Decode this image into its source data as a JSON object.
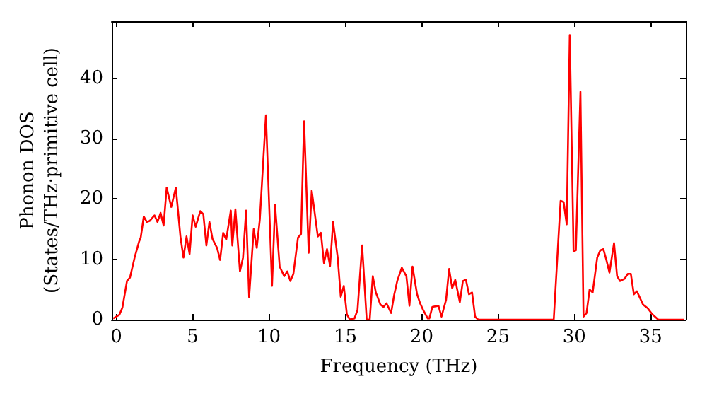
{
  "chart_data": {
    "type": "line",
    "xlabel": "Frequency (THz)",
    "ylabel": "Phonon DOS\n(States/THz·primitive cell)",
    "xlim": [
      -0.3,
      37.3
    ],
    "ylim": [
      0,
      49.5
    ],
    "xticks": [
      0,
      5,
      10,
      15,
      20,
      25,
      30,
      35
    ],
    "yticks": [
      0,
      10,
      20,
      30,
      40
    ],
    "marker": "none",
    "line_style": "solid",
    "series": [
      {
        "color": "#ff0000",
        "x": [
          -0.2,
          0.2,
          0.4,
          0.7,
          0.9,
          1.2,
          1.5,
          1.6,
          1.8,
          2.0,
          2.2,
          2.5,
          2.7,
          2.9,
          3.1,
          3.3,
          3.6,
          3.9,
          4.2,
          4.4,
          4.6,
          4.8,
          5.0,
          5.2,
          5.5,
          5.7,
          5.9,
          6.1,
          6.3,
          6.6,
          6.8,
          7.0,
          7.2,
          7.5,
          7.6,
          7.8,
          8.1,
          8.3,
          8.5,
          8.7,
          9.0,
          9.2,
          9.4,
          9.8,
          10.2,
          10.4,
          10.7,
          11.0,
          11.2,
          11.4,
          11.6,
          11.9,
          12.1,
          12.3,
          12.6,
          12.8,
          13.2,
          13.4,
          13.6,
          13.8,
          14.0,
          14.2,
          14.5,
          14.7,
          14.9,
          15.1,
          15.3,
          15.6,
          15.8,
          16.1,
          16.4,
          16.6,
          16.8,
          17.0,
          17.3,
          17.5,
          17.7,
          18.0,
          18.2,
          18.4,
          18.7,
          19.0,
          19.2,
          19.4,
          19.7,
          19.9,
          20.1,
          20.4,
          20.5,
          20.7,
          21.1,
          21.3,
          21.6,
          21.8,
          22.0,
          22.2,
          22.5,
          22.7,
          22.9,
          23.1,
          23.3,
          23.5,
          23.7,
          28.65,
          29.1,
          29.3,
          29.5,
          29.7,
          29.95,
          30.1,
          30.4,
          30.6,
          30.8,
          31.0,
          31.2,
          31.5,
          31.7,
          31.9,
          32.1,
          32.3,
          32.6,
          32.8,
          33.0,
          33.3,
          33.5,
          33.7,
          33.9,
          34.1,
          34.5,
          34.8,
          35.1,
          35.5,
          37.2
        ],
        "values": [
          0.2,
          0.8,
          2,
          6.4,
          7,
          10.3,
          13,
          13.6,
          17.1,
          16.2,
          16.4,
          17.3,
          16.2,
          17.7,
          15.6,
          21.9,
          18.7,
          21.9,
          13.8,
          10.3,
          13.8,
          10.9,
          17.3,
          15.4,
          18,
          17.5,
          12.3,
          16.2,
          13.4,
          11.9,
          9.9,
          14.4,
          13.3,
          18.1,
          12.3,
          18.3,
          8,
          10.3,
          18.1,
          3.7,
          15,
          11.9,
          16.6,
          33.9,
          5.6,
          19,
          8.8,
          7.2,
          8,
          6.4,
          7.6,
          13.6,
          14.2,
          32.9,
          11.1,
          21.4,
          13.8,
          14.4,
          9.4,
          11.7,
          8.9,
          16.2,
          10.3,
          3.8,
          5.6,
          0.9,
          0,
          0.2,
          1.6,
          12.3,
          0,
          0,
          7.2,
          4.5,
          2.5,
          2.1,
          2.7,
          1.1,
          4.1,
          6.4,
          8.6,
          7.2,
          2.3,
          8.8,
          4.2,
          2.7,
          1.6,
          0.2,
          0.2,
          2.1,
          2.3,
          0.5,
          3.3,
          8.4,
          5.2,
          6.6,
          2.9,
          6.4,
          6.6,
          4.2,
          4.5,
          0.5,
          0,
          0,
          19.7,
          19.5,
          15.8,
          47.2,
          11.3,
          11.5,
          37.8,
          0.5,
          1.1,
          5,
          4.5,
          10.3,
          11.5,
          11.7,
          9.9,
          7.8,
          12.7,
          7.2,
          6.4,
          6.8,
          7.6,
          7.6,
          4.2,
          4.7,
          2.5,
          1.9,
          0.9,
          0,
          0
        ]
      }
    ]
  }
}
